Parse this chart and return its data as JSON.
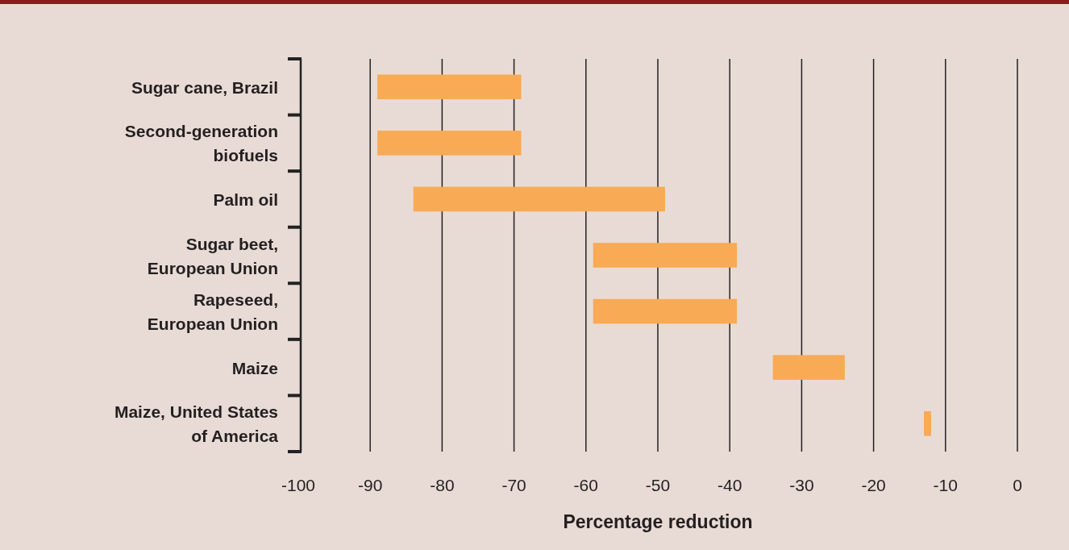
{
  "chart_data": {
    "type": "bar",
    "orientation": "horizontal",
    "xlabel": "Percentage reduction",
    "categories": [
      "Sugar cane, Brazil",
      "Second-generation\nbiofuels",
      "Palm oil",
      "Sugar beet,\nEuropean Union",
      "Rapeseed,\nEuropean Union",
      "Maize",
      "Maize, United States\nof America"
    ],
    "base": [
      -89,
      -89,
      -84,
      -59,
      -59,
      -34,
      -13
    ],
    "values": [
      20,
      20,
      35,
      20,
      20,
      10,
      1
    ],
    "color": "#f9aa55",
    "xlim": [
      -100,
      0
    ],
    "xticks": [
      -100,
      -90,
      -80,
      -70,
      -60,
      -50,
      -40,
      -30,
      -20,
      -10,
      0
    ],
    "grid": "x"
  }
}
